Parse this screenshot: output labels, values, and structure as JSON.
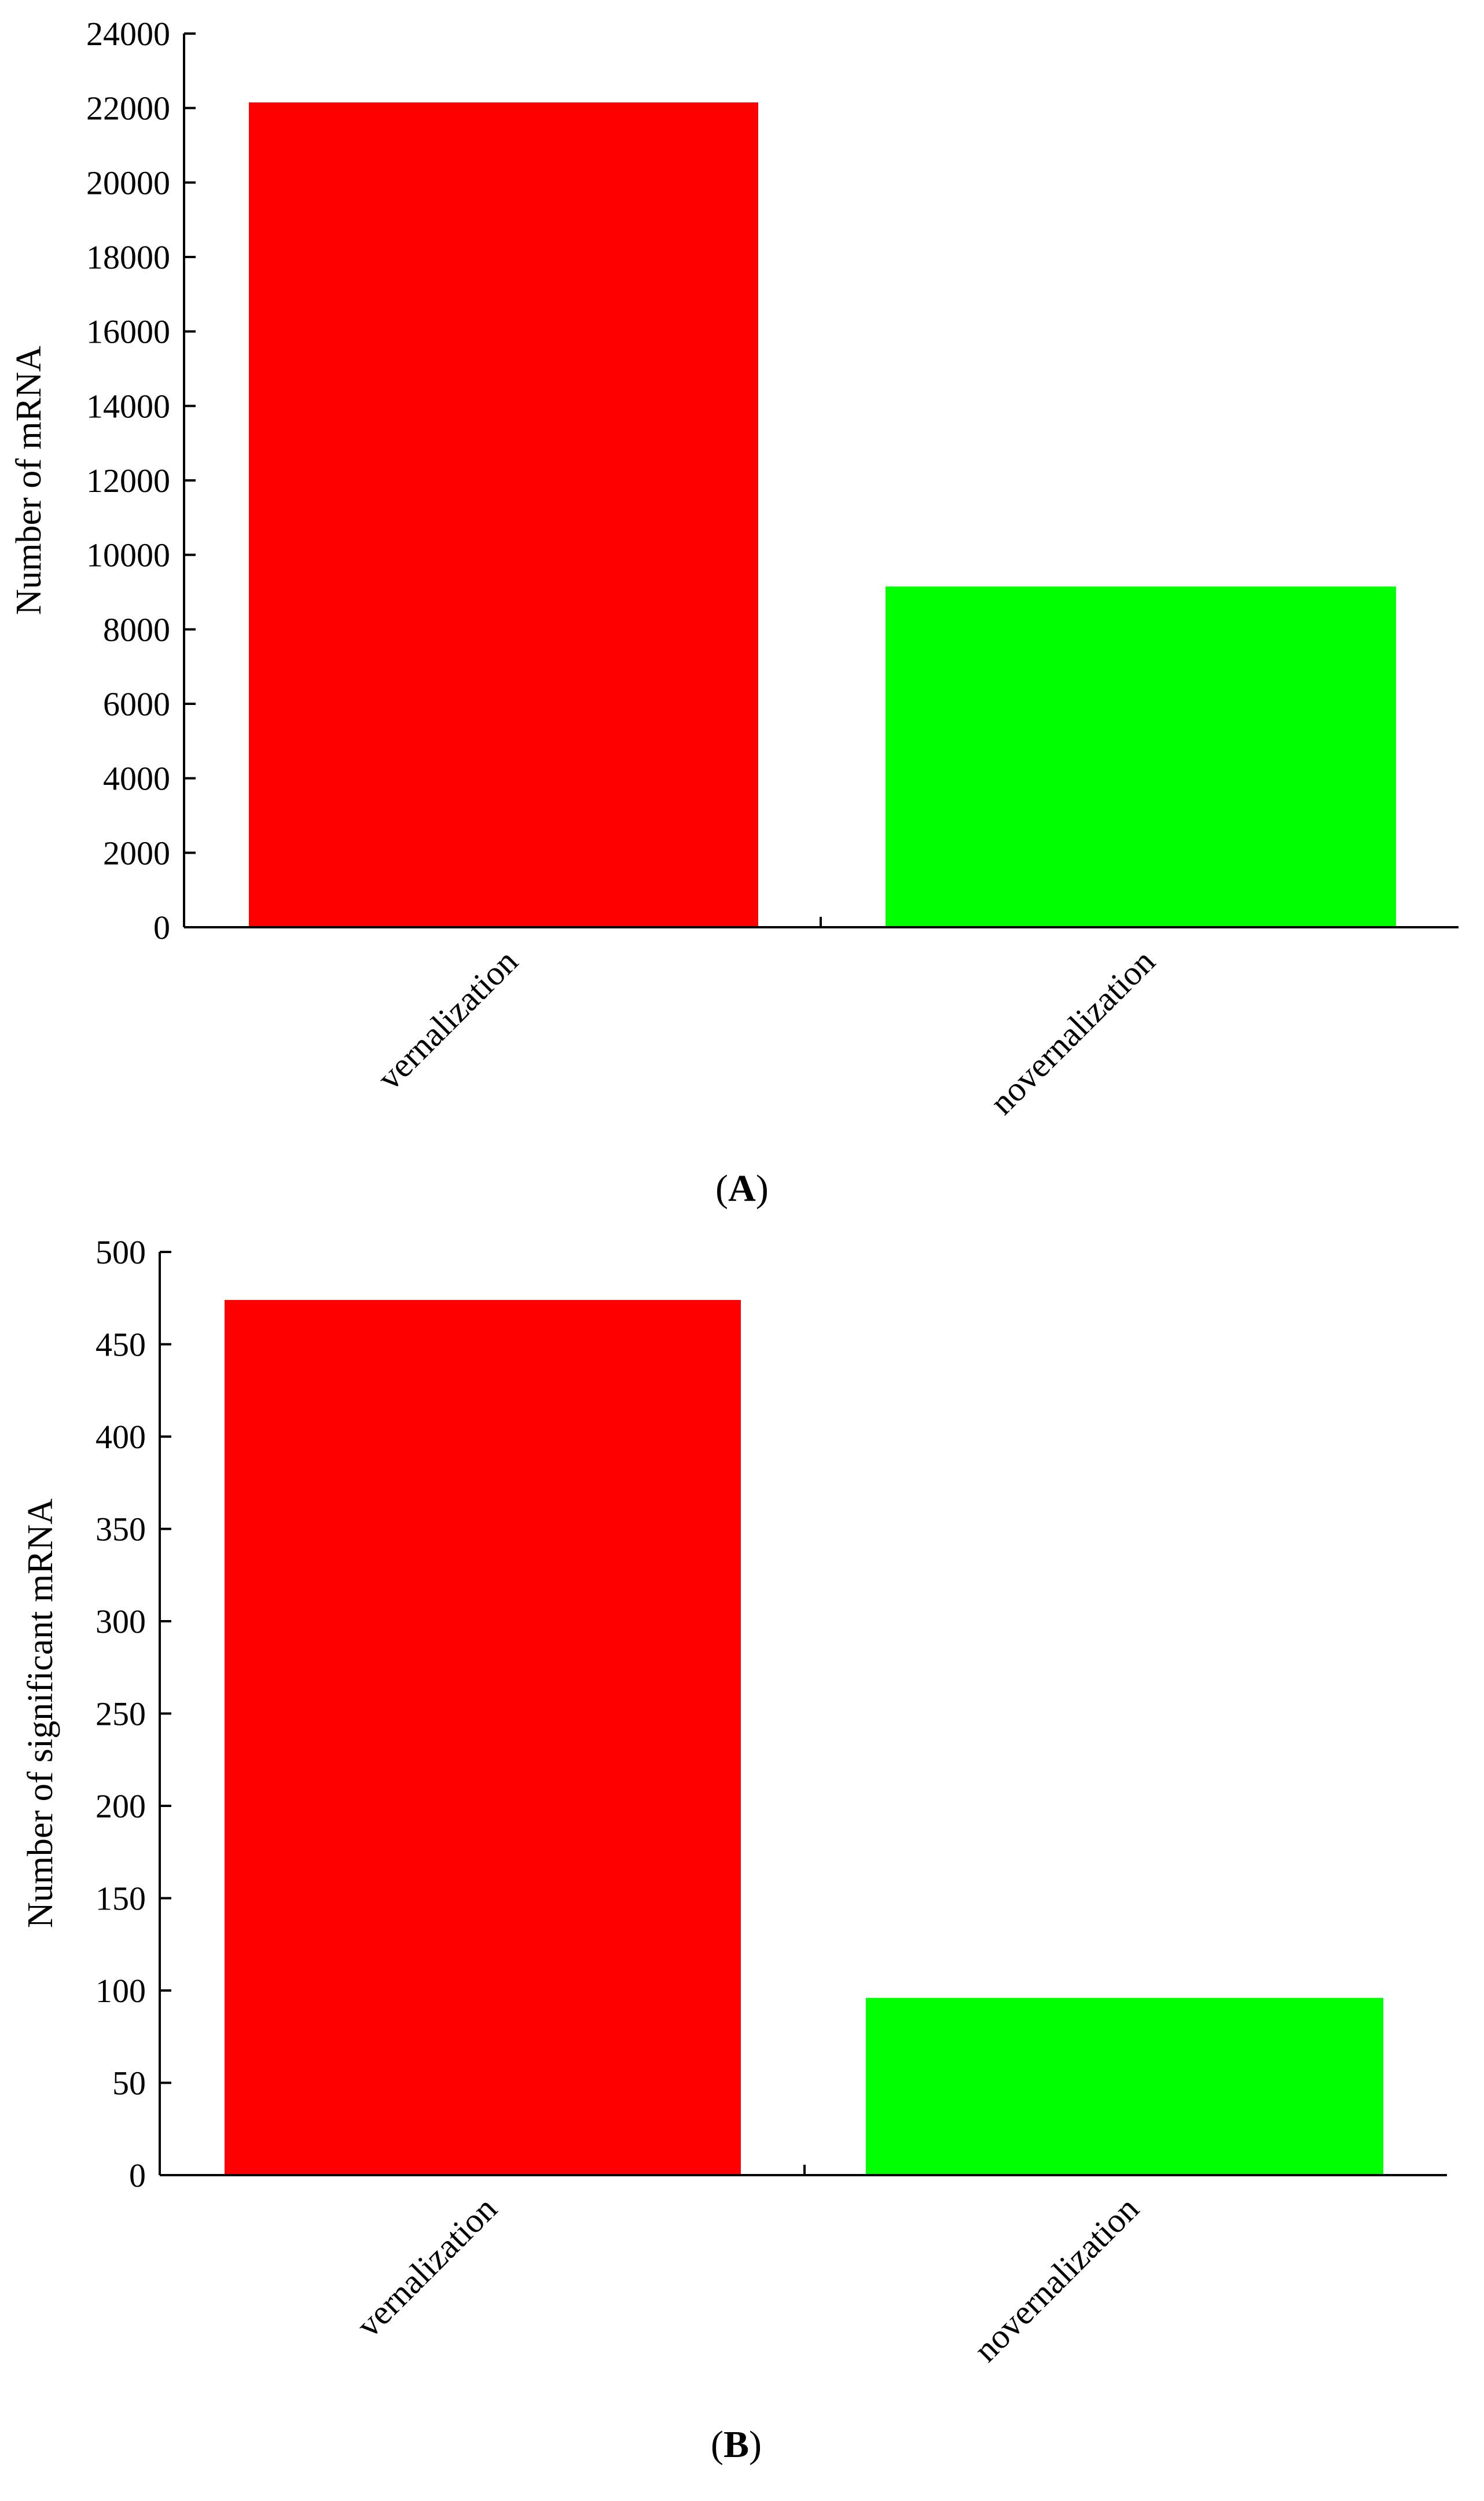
{
  "chart_data": [
    {
      "type": "bar",
      "panel_label": "A",
      "categories": [
        "vernalization",
        "novernalization"
      ],
      "values": [
        22150,
        9150
      ],
      "ylabel": "Number of mRNA",
      "xlabel": "",
      "ylim": [
        0,
        24000
      ],
      "yticks": [
        0,
        2000,
        4000,
        6000,
        8000,
        10000,
        12000,
        14000,
        16000,
        18000,
        20000,
        22000,
        24000
      ],
      "grid": false,
      "colors": [
        "#ff0000",
        "#00ff00"
      ]
    },
    {
      "type": "bar",
      "panel_label": "B",
      "categories": [
        "vernalization",
        "novernalization"
      ],
      "values": [
        474,
        96
      ],
      "ylabel": "Number of significant mRNA",
      "xlabel": "",
      "ylim": [
        0,
        500
      ],
      "yticks": [
        0,
        50,
        100,
        150,
        200,
        250,
        300,
        350,
        400,
        450,
        500
      ],
      "grid": false,
      "colors": [
        "#ff0000",
        "#00ff00"
      ]
    }
  ]
}
